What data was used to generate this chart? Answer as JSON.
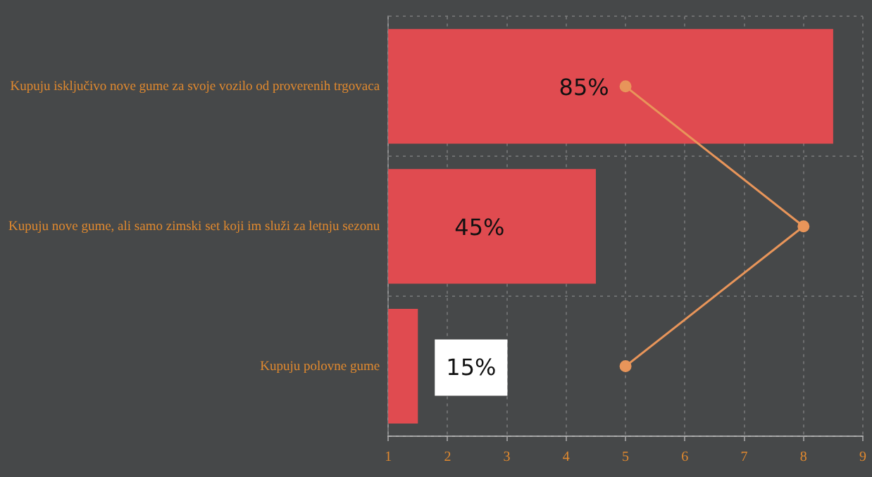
{
  "chart_data": {
    "type": "bar",
    "orientation": "horizontal",
    "categories": [
      "Kupuju isključivo nove gume za svoje vozilo od proverenih trgovaca",
      "Kupuju nove gume, ali samo zimski set koji im služi za letnju sezonu",
      "Kupuju polovne gume"
    ],
    "series": [
      {
        "color": "#e04b50",
        "values": [
          8.5,
          4.5,
          1.5
        ]
      },
      {
        "type": "line",
        "color": "#e8955a",
        "values": [
          5,
          8,
          5
        ]
      }
    ],
    "annotations": [
      "85%",
      "45%",
      "15%"
    ],
    "xlim": [
      1,
      9
    ],
    "xticks": [
      1,
      2,
      3,
      4,
      5,
      6,
      7,
      8,
      9
    ],
    "grid": true,
    "marker": "circle",
    "line_style": "solid"
  }
}
